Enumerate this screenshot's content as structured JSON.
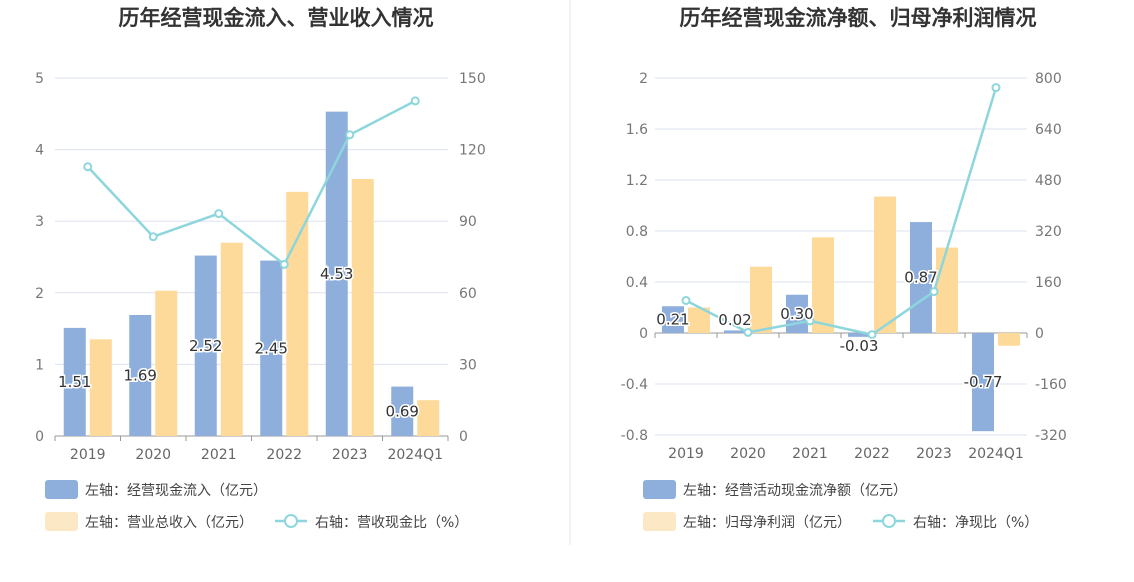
{
  "colors": {
    "cash_bar": "#8eaedc",
    "revenue_bar": "#fdd99a",
    "ratio_line": "#8dd6dc",
    "legend_patch_light": "#fde8c6",
    "grid": "#dde1ef",
    "divider": "#e6e6e6"
  },
  "chart_data": [
    {
      "type": "bar",
      "title": "历年经营现金流入、营业收入情况",
      "categories": [
        "2019",
        "2020",
        "2021",
        "2022",
        "2023",
        "2024Q1"
      ],
      "left_axis": {
        "ylim": [
          0,
          5
        ],
        "ticks": [
          "0",
          "1",
          "2",
          "3",
          "4",
          "5"
        ]
      },
      "right_axis": {
        "ylim": [
          0,
          150
        ],
        "ticks": [
          "0",
          "30",
          "60",
          "90",
          "120",
          "150"
        ]
      },
      "series": [
        {
          "name": "左轴：经营现金流入（亿元）",
          "axis": "left",
          "type": "bar",
          "values": [
            1.51,
            1.69,
            2.52,
            2.45,
            4.53,
            0.69
          ],
          "labels": [
            "1.51",
            "1.69",
            "2.52",
            "2.45",
            "4.53",
            "0.69"
          ]
        },
        {
          "name": "左轴：营业总收入（亿元）",
          "axis": "left",
          "type": "bar",
          "values": [
            1.35,
            2.03,
            2.7,
            3.41,
            3.59,
            0.5
          ]
        },
        {
          "name": "右轴：营收现金比（%）",
          "axis": "right",
          "type": "line",
          "values": [
            112.8,
            83.5,
            93.2,
            71.9,
            126.2,
            140.4
          ]
        }
      ],
      "grid": true,
      "legend_position": "bottom-left"
    },
    {
      "type": "bar",
      "title": "历年经营现金流净额、归母净利润情况",
      "categories": [
        "2019",
        "2020",
        "2021",
        "2022",
        "2023",
        "2024Q1"
      ],
      "left_axis": {
        "ylim": [
          -0.8,
          2
        ],
        "ticks": [
          "-0.8",
          "-0.4",
          "0",
          "0.4",
          "0.8",
          "1.2",
          "1.6",
          "2"
        ]
      },
      "right_axis": {
        "ylim": [
          -320,
          800
        ],
        "ticks": [
          "-320",
          "-160",
          "0",
          "160",
          "320",
          "480",
          "640",
          "800"
        ]
      },
      "series": [
        {
          "name": "左轴：经营活动现金流净额（亿元）",
          "axis": "left",
          "type": "bar",
          "values": [
            0.21,
            0.02,
            0.3,
            -0.03,
            0.87,
            -0.77
          ],
          "labels": [
            "0.21",
            "0.02",
            "0.30",
            "-0.03",
            "0.87",
            "-0.77"
          ]
        },
        {
          "name": "左轴：归母净利润（亿元）",
          "axis": "left",
          "type": "bar",
          "values": [
            0.2,
            0.52,
            0.75,
            1.07,
            0.67,
            -0.1
          ]
        },
        {
          "name": "右轴：净现比（%）",
          "axis": "right",
          "type": "line",
          "values": [
            102,
            2,
            38,
            -5,
            130,
            770
          ]
        }
      ],
      "grid": true,
      "legend_position": "bottom-left"
    }
  ]
}
